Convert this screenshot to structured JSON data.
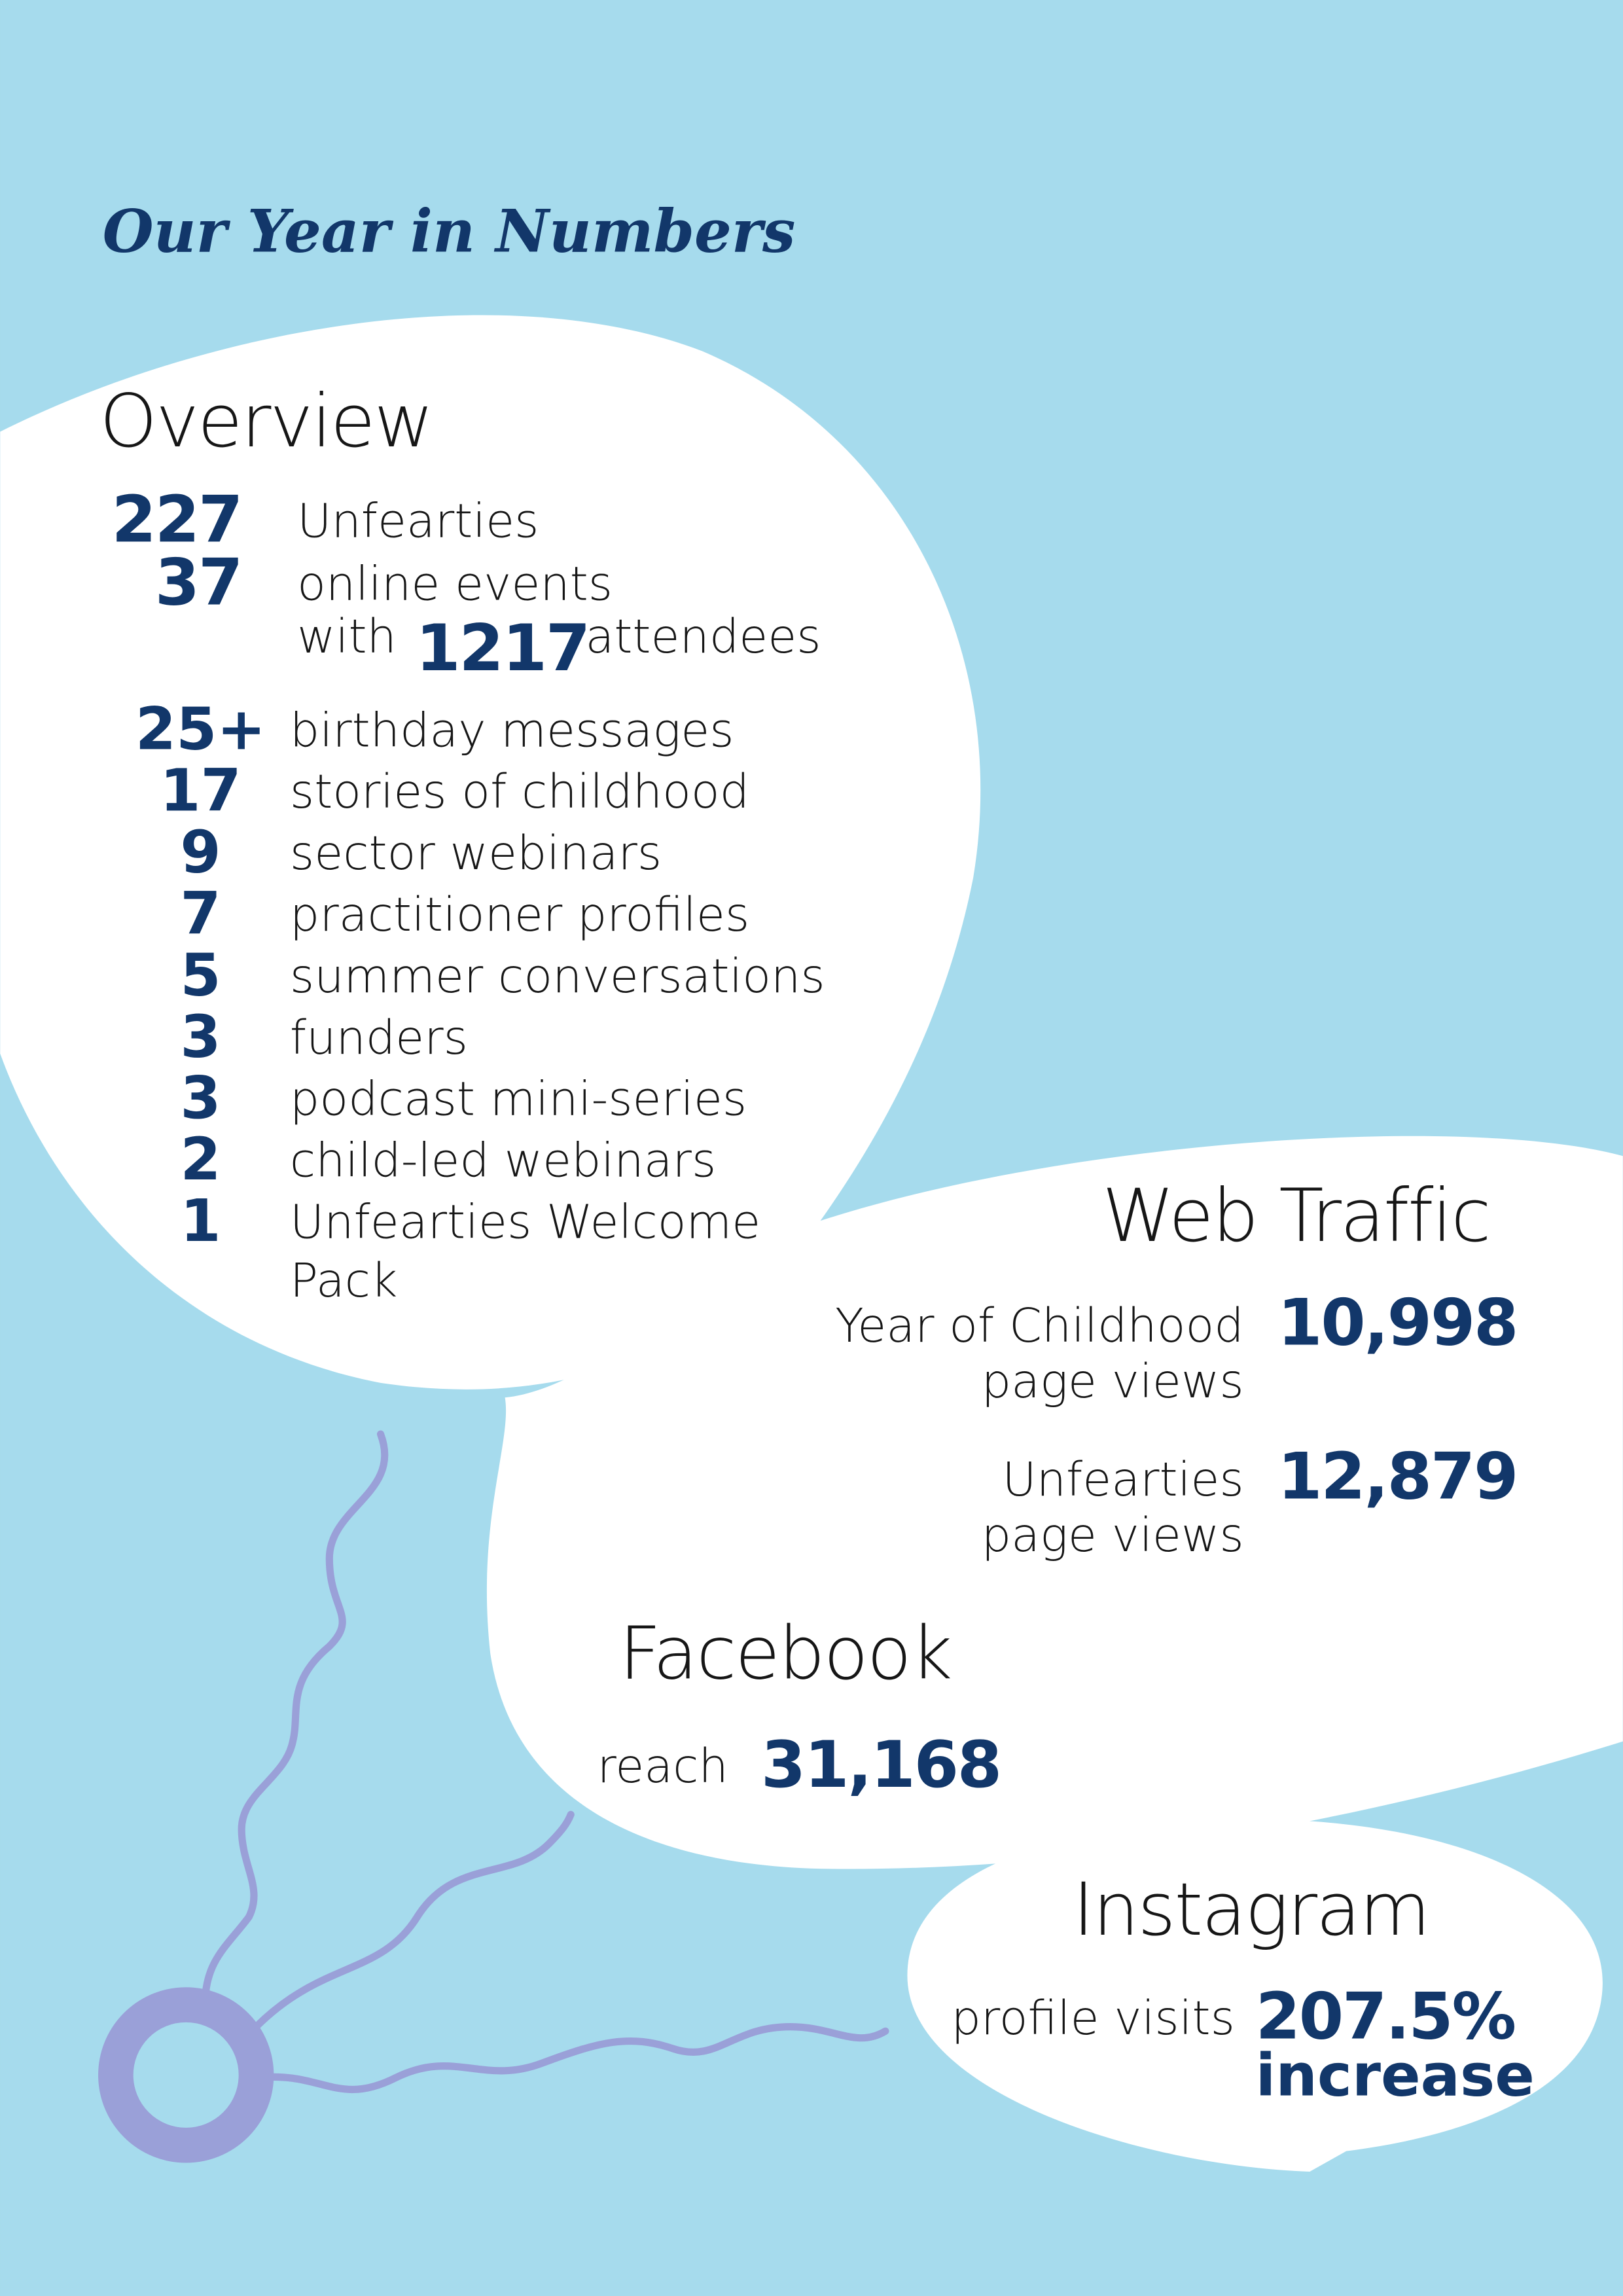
{
  "title": "Our Year in Numbers",
  "overview": {
    "heading": "Overview",
    "top": [
      {
        "number": "227",
        "label": "Unfearties"
      },
      {
        "number": "37",
        "label": "online events"
      }
    ],
    "attendees": {
      "prefix": "with",
      "number": "1217",
      "suffix": "attendees"
    },
    "list": [
      {
        "number": "25+",
        "label": [
          "birthday messages"
        ]
      },
      {
        "number": "17",
        "label": [
          "stories of childhood"
        ]
      },
      {
        "number": "9",
        "label": [
          "sector webinars"
        ]
      },
      {
        "number": "7",
        "label": [
          "practitioner profiles"
        ]
      },
      {
        "number": "5",
        "label": [
          "summer conversations"
        ]
      },
      {
        "number": "3",
        "label": [
          "funders"
        ]
      },
      {
        "number": "3",
        "label": [
          "podcast mini-series"
        ]
      },
      {
        "number": "2",
        "label": [
          "child-led webinars"
        ]
      },
      {
        "number": "1",
        "label": [
          "Unfearties Welcome",
          "Pack"
        ]
      }
    ]
  },
  "web_traffic": {
    "heading": "Web Traffic",
    "items": [
      {
        "label": [
          "Year of Childhood",
          "page views"
        ],
        "number": "10,998"
      },
      {
        "label": [
          "Unfearties",
          "page views"
        ],
        "number": "12,879"
      }
    ]
  },
  "facebook": {
    "heading": "Facebook",
    "label": "reach",
    "number": "31,168"
  },
  "instagram": {
    "heading": "Instagram",
    "label": "profile visits",
    "number": "207.5%",
    "note": "increase"
  }
}
